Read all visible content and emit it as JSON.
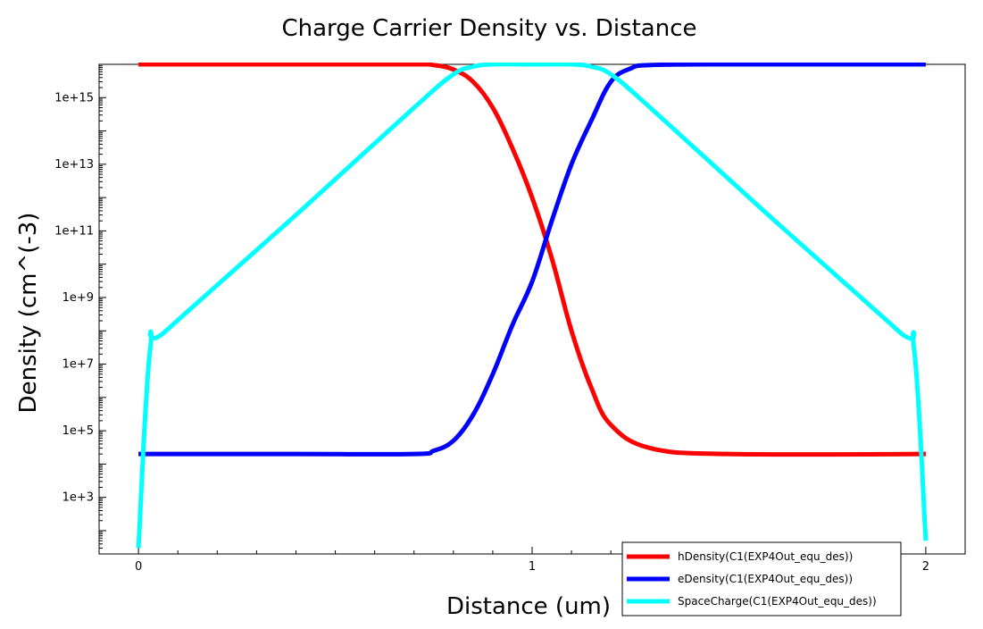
{
  "chart_data": {
    "type": "line",
    "title": "Charge Carrier Density vs. Distance",
    "xlabel": "Distance (um)",
    "ylabel": "Density (cm^(-3)",
    "x_scale": "linear",
    "y_scale": "log",
    "xlim": [
      -0.1,
      2.1
    ],
    "ylim": [
      20,
      1e+16
    ],
    "x_ticks": [
      0,
      1,
      2
    ],
    "x_tick_labels": [
      "0",
      "1",
      "2"
    ],
    "y_ticks": [
      1000,
      100000,
      10000000,
      1000000000,
      100000000000,
      10000000000000,
      1000000000000000
    ],
    "y_tick_labels": [
      "1e+3",
      "1e+5",
      "1e+7",
      "1e+9",
      "1e+11",
      "1e+13",
      "1e+15"
    ],
    "grid": false,
    "legend_position": "bottom-right",
    "series": [
      {
        "name": "hDensity(C1(EXP4Out_equ_des))",
        "color": "#ff0000",
        "x": [
          0,
          0.4,
          0.7,
          0.75,
          0.8,
          0.85,
          0.9,
          0.95,
          1.0,
          1.05,
          1.1,
          1.15,
          1.2,
          1.3,
          1.5,
          2.0
        ],
        "y": [
          1e+16,
          1e+16,
          1e+16,
          9500000000000000.0,
          7000000000000000.0,
          3000000000000000.0,
          500000000000000.0,
          30000000000000.0,
          1000000000000.0,
          15000000000.0,
          100000000.0,
          2000000.0,
          150000.0,
          30000.0,
          20000.0,
          20000.0
        ]
      },
      {
        "name": "eDensity(C1(EXP4Out_equ_des))",
        "color": "#0000ff",
        "x": [
          0,
          0.4,
          0.7,
          0.75,
          0.8,
          0.85,
          0.9,
          0.95,
          1.0,
          1.05,
          1.1,
          1.15,
          1.2,
          1.25,
          1.3,
          1.5,
          2.0
        ],
        "y": [
          20000.0,
          20000.0,
          20000.0,
          25000.0,
          50000.0,
          300000.0,
          5000000.0,
          150000000.0,
          3000000000.0,
          200000000000.0,
          10000000000000.0,
          200000000000000.0,
          3000000000000000.0,
          7500000000000000.0,
          9500000000000000.0,
          1e+16,
          1e+16
        ]
      },
      {
        "name": "SpaceCharge(C1(EXP4Out_equ_des))",
        "color": "#00ffff",
        "x": [
          0,
          0.03,
          0.07,
          0.4,
          0.7,
          0.8,
          0.85,
          0.9,
          1.0,
          1.1,
          1.15,
          1.2,
          1.3,
          1.6,
          1.93,
          1.97,
          2.0
        ],
        "y": [
          30,
          30000000.0,
          100000000.0,
          300000000000.0,
          500000000000000.0,
          5000000000000000.0,
          8500000000000000.0,
          1e+16,
          1e+16,
          1e+16,
          8500000000000000.0,
          5000000000000000.0,
          500000000000000.0,
          300000000000.0,
          100000000.0,
          30000000.0,
          50
        ]
      }
    ]
  }
}
